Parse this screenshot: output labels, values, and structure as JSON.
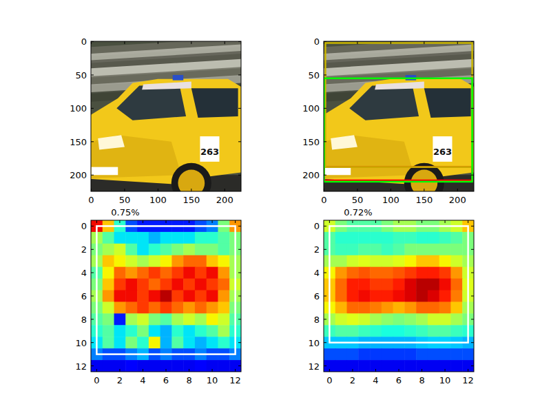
{
  "chart_data": [
    {
      "type": "image",
      "xlim": [
        -0.5,
        224.5
      ],
      "ylim": [
        224.5,
        -0.5
      ],
      "xticks": [
        0,
        50,
        100,
        150,
        200
      ],
      "yticks": [
        0,
        50,
        100,
        150,
        200
      ],
      "photo_text": "263"
    },
    {
      "type": "image",
      "xlim": [
        -0.5,
        224.5
      ],
      "ylim": [
        224.5,
        -0.5
      ],
      "xticks": [
        0,
        50,
        100,
        150,
        200
      ],
      "yticks": [
        0,
        50,
        100,
        150,
        200
      ],
      "photo_text": "263",
      "boxes": [
        {
          "x0": 0,
          "y0": 188,
          "x1": 222,
          "y1": 208,
          "color": "#ff0000"
        },
        {
          "x0": 2,
          "y0": 2,
          "x1": 222,
          "y1": 188,
          "color": "#c8b400"
        },
        {
          "x0": 0,
          "y0": 55,
          "x1": 222,
          "y1": 210,
          "color": "#00ff00"
        }
      ]
    },
    {
      "type": "heatmap",
      "title": "0.75%",
      "xlim": [
        -0.5,
        12.5
      ],
      "ylim": [
        12.5,
        -0.5
      ],
      "xticks": [
        0,
        2,
        4,
        6,
        8,
        10,
        12
      ],
      "yticks": [
        0,
        2,
        4,
        6,
        8,
        10,
        12
      ],
      "color": "jet",
      "color_range": [
        0,
        1
      ],
      "cells": [
        [
          0.9,
          0.7,
          0.4,
          0.2,
          0.15,
          0.15,
          0.15,
          0.15,
          0.15,
          0.2,
          0.25,
          0.5,
          0.75
        ],
        [
          0.55,
          0.45,
          0.35,
          0.35,
          0.35,
          0.3,
          0.35,
          0.35,
          0.35,
          0.4,
          0.4,
          0.45,
          0.5
        ],
        [
          0.5,
          0.55,
          0.6,
          0.45,
          0.35,
          0.4,
          0.45,
          0.5,
          0.55,
          0.5,
          0.5,
          0.45,
          0.5
        ],
        [
          0.55,
          0.7,
          0.65,
          0.6,
          0.55,
          0.6,
          0.65,
          0.75,
          0.8,
          0.8,
          0.7,
          0.65,
          0.55
        ],
        [
          0.45,
          0.65,
          0.8,
          0.75,
          0.8,
          0.85,
          0.8,
          0.85,
          0.9,
          0.85,
          0.9,
          0.75,
          0.55
        ],
        [
          0.5,
          0.7,
          0.85,
          0.9,
          0.85,
          0.8,
          0.85,
          0.9,
          0.85,
          0.9,
          0.85,
          0.8,
          0.6
        ],
        [
          0.55,
          0.75,
          0.9,
          0.9,
          0.85,
          0.9,
          0.95,
          0.85,
          0.9,
          0.85,
          0.9,
          0.75,
          0.55
        ],
        [
          0.5,
          0.6,
          0.75,
          0.8,
          0.85,
          0.8,
          0.85,
          0.8,
          0.75,
          0.8,
          0.75,
          0.7,
          0.5
        ],
        [
          0.45,
          0.5,
          0.15,
          0.55,
          0.6,
          0.5,
          0.45,
          0.55,
          0.6,
          0.55,
          0.65,
          0.6,
          0.45
        ],
        [
          0.4,
          0.45,
          0.35,
          0.4,
          0.5,
          0.35,
          0.3,
          0.4,
          0.35,
          0.4,
          0.45,
          0.55,
          0.4
        ],
        [
          0.35,
          0.45,
          0.35,
          0.5,
          0.4,
          0.65,
          0.3,
          0.45,
          0.35,
          0.3,
          0.35,
          0.4,
          0.35
        ],
        [
          0.25,
          0.2,
          0.2,
          0.25,
          0.3,
          0.2,
          0.25,
          0.2,
          0.2,
          0.25,
          0.2,
          0.2,
          0.25
        ],
        [
          0.1,
          0.1,
          0.1,
          0.12,
          0.1,
          0.1,
          0.1,
          0.1,
          0.1,
          0.12,
          0.1,
          0.1,
          0.1
        ]
      ],
      "boxes": [
        {
          "x0": 0,
          "y0": 0,
          "x1": 12,
          "y1": 11,
          "color": "#ffffff"
        }
      ]
    },
    {
      "type": "heatmap",
      "title": "0.72%",
      "xlim": [
        -0.5,
        12.5
      ],
      "ylim": [
        12.5,
        -0.5
      ],
      "xticks": [
        0,
        2,
        4,
        6,
        8,
        10,
        12
      ],
      "yticks": [
        0,
        2,
        4,
        6,
        8,
        10,
        12
      ],
      "color": "jet",
      "color_range": [
        0,
        1
      ],
      "cells": [
        [
          0.6,
          0.5,
          0.45,
          0.45,
          0.45,
          0.5,
          0.55,
          0.55,
          0.5,
          0.5,
          0.55,
          0.6,
          0.7
        ],
        [
          0.45,
          0.4,
          0.4,
          0.4,
          0.4,
          0.4,
          0.42,
          0.42,
          0.4,
          0.4,
          0.42,
          0.45,
          0.5
        ],
        [
          0.45,
          0.42,
          0.42,
          0.45,
          0.45,
          0.42,
          0.45,
          0.5,
          0.5,
          0.5,
          0.5,
          0.5,
          0.5
        ],
        [
          0.55,
          0.55,
          0.6,
          0.62,
          0.6,
          0.6,
          0.62,
          0.65,
          0.7,
          0.7,
          0.65,
          0.6,
          0.55
        ],
        [
          0.65,
          0.75,
          0.8,
          0.82,
          0.8,
          0.8,
          0.82,
          0.85,
          0.88,
          0.88,
          0.85,
          0.75,
          0.6
        ],
        [
          0.7,
          0.8,
          0.88,
          0.88,
          0.85,
          0.85,
          0.88,
          0.92,
          0.95,
          0.95,
          0.9,
          0.8,
          0.62
        ],
        [
          0.7,
          0.8,
          0.88,
          0.9,
          0.88,
          0.88,
          0.9,
          0.92,
          0.95,
          0.92,
          0.88,
          0.78,
          0.6
        ],
        [
          0.65,
          0.72,
          0.8,
          0.8,
          0.78,
          0.75,
          0.72,
          0.75,
          0.8,
          0.8,
          0.78,
          0.7,
          0.55
        ],
        [
          0.55,
          0.6,
          0.62,
          0.6,
          0.55,
          0.52,
          0.5,
          0.52,
          0.55,
          0.6,
          0.6,
          0.55,
          0.5
        ],
        [
          0.42,
          0.45,
          0.45,
          0.42,
          0.4,
          0.38,
          0.38,
          0.4,
          0.42,
          0.45,
          0.45,
          0.42,
          0.4
        ],
        [
          0.32,
          0.32,
          0.32,
          0.3,
          0.3,
          0.3,
          0.3,
          0.3,
          0.32,
          0.33,
          0.33,
          0.32,
          0.3
        ],
        [
          0.2,
          0.2,
          0.2,
          0.18,
          0.18,
          0.18,
          0.18,
          0.18,
          0.2,
          0.2,
          0.2,
          0.2,
          0.2
        ],
        [
          0.1,
          0.1,
          0.1,
          0.1,
          0.1,
          0.1,
          0.1,
          0.1,
          0.1,
          0.1,
          0.1,
          0.1,
          0.1
        ]
      ],
      "boxes": [
        {
          "x0": 0,
          "y0": 0,
          "x1": 12,
          "y1": 10,
          "color": "#ffffff"
        }
      ]
    }
  ]
}
